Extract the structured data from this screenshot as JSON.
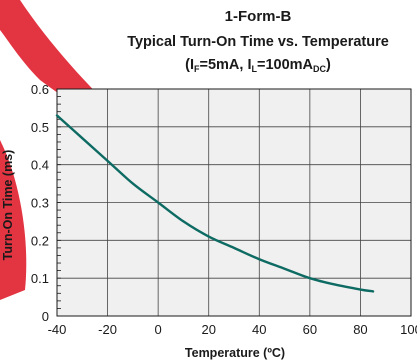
{
  "chart_data": {
    "type": "line",
    "title": "1-Form-B",
    "subtitle": "Typical Turn-On Time vs. Temperature",
    "conditions": {
      "open": "(I",
      "if_sub": "F",
      "mid": "=5mA, I",
      "il_sub": "L",
      "mid2": "=100mA",
      "dc_sub": "DC",
      "close": ")"
    },
    "xlabel": "Temperature (ºC)",
    "ylabel": "Turn-On Time (ms)",
    "xlim": [
      -40,
      100
    ],
    "ylim": [
      0,
      0.6
    ],
    "x_ticks": [
      "-40",
      "-20",
      "0",
      "20",
      "40",
      "60",
      "80",
      "100"
    ],
    "y_ticks": [
      "0",
      "0.1",
      "0.2",
      "0.3",
      "0.4",
      "0.5",
      "0.6"
    ],
    "grid": true,
    "background_color": "#f0f0f0",
    "grid_color": "#444444",
    "watermark_color": "#e01e2e",
    "series": [
      {
        "color": "#0e6b63",
        "x": [
          -40,
          -30,
          -20,
          -10,
          0,
          10,
          20,
          30,
          40,
          50,
          60,
          70,
          80,
          85
        ],
        "values": [
          0.53,
          0.47,
          0.41,
          0.35,
          0.3,
          0.25,
          0.21,
          0.18,
          0.15,
          0.125,
          0.1,
          0.083,
          0.07,
          0.065
        ]
      }
    ]
  }
}
